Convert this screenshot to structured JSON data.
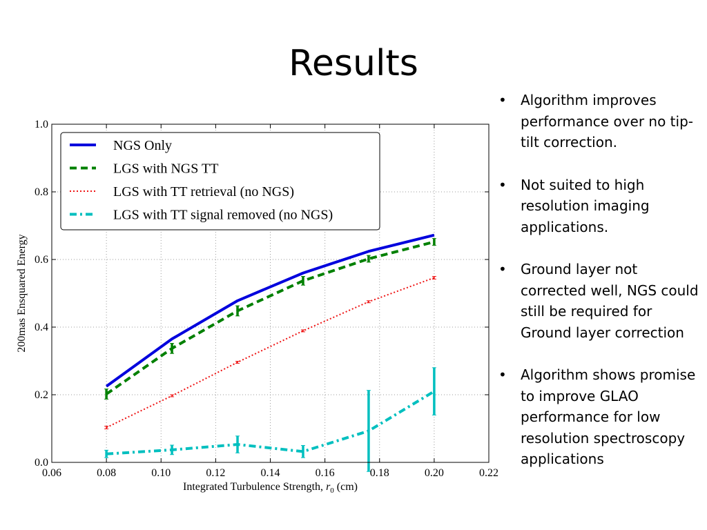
{
  "slide": {
    "title": "Results",
    "bullets": [
      "Algorithm improves performance over no tip-tilt correction.",
      "Not suited to high resolution imaging applications.",
      "Ground layer not corrected well, NGS could still be required for Ground layer correction",
      "Algorithm shows promise to improve GLAO performance for low resolution spectroscopy applications"
    ],
    "bullet_glyph": "•"
  },
  "chart_data": {
    "type": "line",
    "xlabel_prefix": "Integrated Turbulence Strength, ",
    "xlabel_var": "r",
    "xlabel_sub": "0",
    "xlabel_suffix": " (cm)",
    "ylabel": "200mas Ensquared Energy",
    "xlim": [
      0.06,
      0.22
    ],
    "ylim": [
      0.0,
      1.0
    ],
    "xticks": [
      "0.06",
      "0.08",
      "0.10",
      "0.12",
      "0.14",
      "0.16",
      "0.18",
      "0.20",
      "0.22"
    ],
    "yticks": [
      "0.0",
      "0.2",
      "0.4",
      "0.6",
      "0.8",
      "1.0"
    ],
    "grid": true,
    "legend_position": "upper-left",
    "x": [
      0.08,
      0.104,
      0.128,
      0.152,
      0.176,
      0.2
    ],
    "series": [
      {
        "name": "NGS Only",
        "color": "#0000dd",
        "style": "solid",
        "values": [
          0.225,
          0.365,
          0.478,
          0.56,
          0.624,
          0.672
        ],
        "errors": [
          0,
          0,
          0,
          0,
          0,
          0
        ]
      },
      {
        "name": "LGS with NGS TT",
        "color": "#008000",
        "style": "dashed",
        "values": [
          0.202,
          0.337,
          0.448,
          0.537,
          0.602,
          0.652
        ],
        "errors": [
          0.015,
          0.015,
          0.015,
          0.013,
          0.01,
          0.01
        ]
      },
      {
        "name": "LGS with TT retrieval (no NGS)",
        "color": "#ee1111",
        "style": "dotted",
        "values": [
          0.103,
          0.197,
          0.296,
          0.389,
          0.475,
          0.546
        ],
        "errors": [
          0.004,
          0.003,
          0.003,
          0.003,
          0.003,
          0.004
        ]
      },
      {
        "name": "LGS with TT signal removed (no NGS)",
        "color": "#00bfbf",
        "style": "dashdot",
        "values": [
          0.025,
          0.037,
          0.053,
          0.032,
          0.093,
          0.21
        ],
        "errors": [
          0.011,
          0.014,
          0.025,
          0.018,
          0.12,
          0.07
        ]
      }
    ]
  }
}
